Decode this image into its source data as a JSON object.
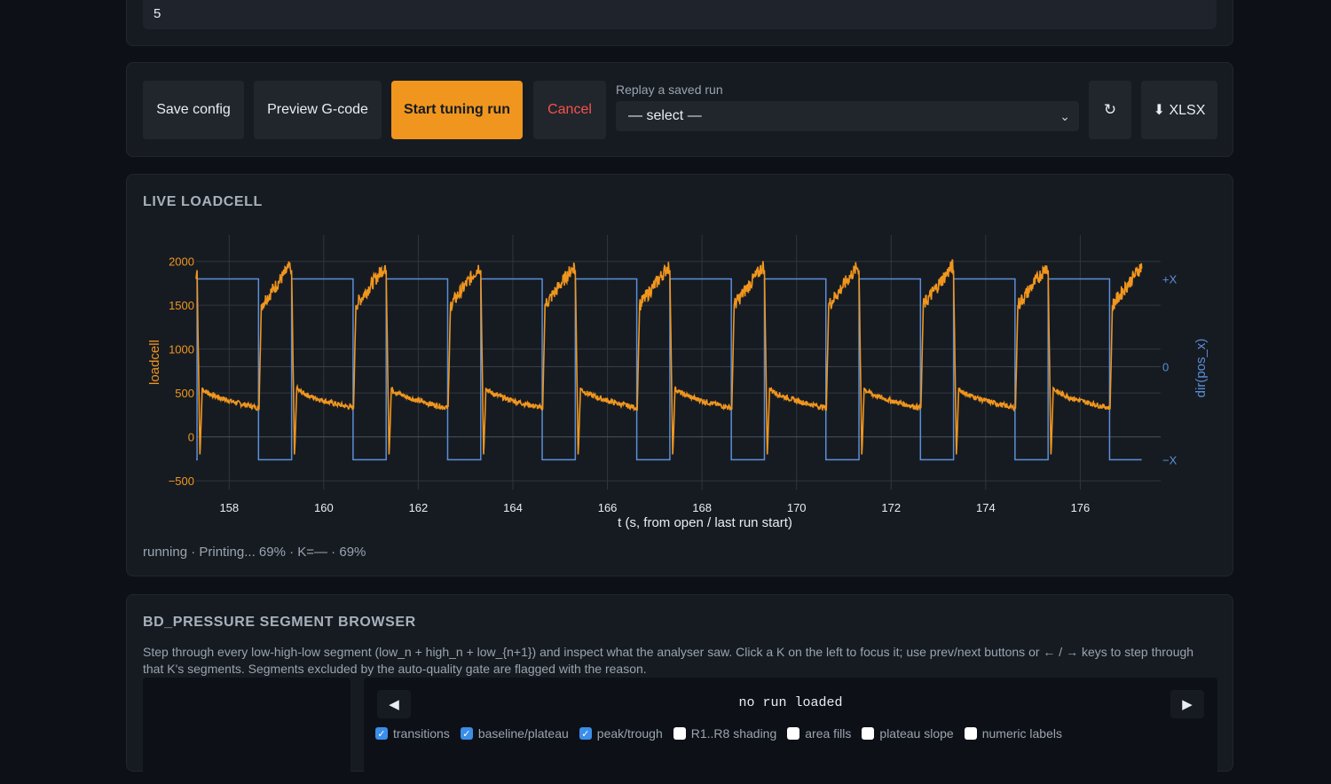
{
  "top": {
    "input_value": "5"
  },
  "toolbar": {
    "save_label": "Save config",
    "preview_label": "Preview G-code",
    "start_label": "Start tuning run",
    "cancel_label": "Cancel",
    "replay_label": "Replay a saved run",
    "replay_value": "— select —",
    "refresh_glyph": "↻",
    "xlsx_label": "⬇ XLSX"
  },
  "colors": {
    "accent": "#f0961e",
    "cancel": "#f85149",
    "direction": "#5b8fd6",
    "loadcell": "#f0961e"
  },
  "live": {
    "title": "LIVE LOADCELL",
    "status": "running · Printing... 69% · K=— · 69%"
  },
  "chart_data": {
    "type": "line",
    "xlabel": "t (s, from open / last run start)",
    "ylabel": "loadcell",
    "y2label": "dir(pos_x)",
    "x_ticks": [
      "158",
      "160",
      "162",
      "164",
      "166",
      "168",
      "170",
      "172",
      "174",
      "176"
    ],
    "y_ticks": [
      "2000",
      "1500",
      "1000",
      "500",
      "0",
      "−500"
    ],
    "y2_ticks": [
      "+X",
      "0",
      "−X"
    ],
    "xlim": [
      157.3,
      177.7
    ],
    "ylim": [
      -600,
      2300
    ],
    "grid": true,
    "series": [
      {
        "color": "#f0961e",
        "t_start": 157.3,
        "t_end": 177.3,
        "period": 2.0,
        "high_start": 0.0,
        "high_end": 0.22,
        "high_level": 1900,
        "low_level": 330,
        "spike_low": -250,
        "relax_peak": 560
      },
      {
        "color": "#5b8fd6",
        "values": "square",
        "levels": [
          1,
          -1
        ]
      }
    ]
  },
  "segments": {
    "title": "BD_PRESSURE SEGMENT BROWSER",
    "description": "Step through every low-high-low segment (low_n + high_n + low_{n+1}) and inspect what the analyser saw. Click a K on the left to focus it; use prev/next buttons or ← / → keys to step through that K's segments. Segments excluded by the auto-quality gate are flagged with the reason.",
    "status": "no run loaded",
    "prev_glyph": "◀",
    "next_glyph": "▶",
    "checkboxes": [
      {
        "label": "transitions",
        "checked": true
      },
      {
        "label": "baseline/plateau",
        "checked": true
      },
      {
        "label": "peak/trough",
        "checked": true
      },
      {
        "label": "R1..R8 shading",
        "checked": false
      },
      {
        "label": "area fills",
        "checked": false
      },
      {
        "label": "plateau slope",
        "checked": false
      },
      {
        "label": "numeric labels",
        "checked": false
      }
    ]
  }
}
